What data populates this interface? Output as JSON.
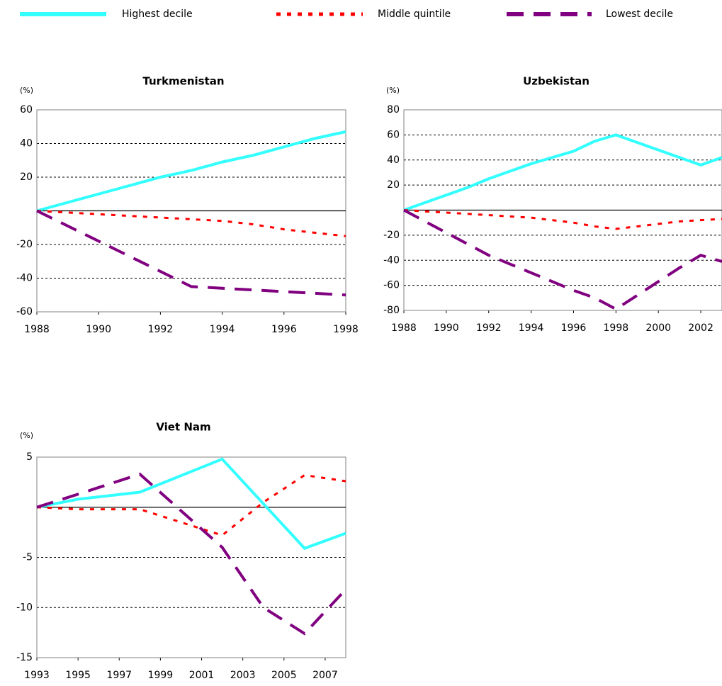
{
  "chart_data": [
    {
      "type": "line",
      "title": "Turkmenistan",
      "y_label": "(%)",
      "x": [
        1988,
        1989,
        1990,
        1991,
        1992,
        1993,
        1994,
        1995,
        1996,
        1997,
        1998
      ],
      "xlim": [
        1988,
        1998
      ],
      "xticks": [
        1988,
        1990,
        1992,
        1994,
        1996,
        1998
      ],
      "ylim": [
        -60,
        60
      ],
      "yticks": [
        -60,
        -40,
        -20,
        20,
        40,
        60
      ],
      "grid": true,
      "zero_line": true,
      "series": [
        {
          "name": "Highest decile",
          "color": "#33ffff",
          "dash": "solid",
          "values": [
            0,
            5,
            10,
            15,
            20,
            24,
            29,
            33,
            38,
            43,
            47
          ]
        },
        {
          "name": "Middle quintile",
          "color": "#ff0000",
          "dash": "dotted",
          "values": [
            0,
            -1,
            -2,
            -3,
            -4,
            -5,
            -6,
            -8,
            -11,
            -13,
            -15
          ]
        },
        {
          "name": "Lowest decile",
          "color": "#800080",
          "dash": "dashed",
          "values": [
            0,
            -9,
            -18,
            -27,
            -36,
            -45,
            -46,
            -47,
            -48,
            -49,
            -50
          ]
        }
      ]
    },
    {
      "type": "line",
      "title": "Uzbekistan",
      "y_label": "(%)",
      "x": [
        1988,
        1989,
        1990,
        1991,
        1992,
        1993,
        1994,
        1995,
        1996,
        1997,
        1998,
        1999,
        2000,
        2001,
        2002,
        2003
      ],
      "xlim": [
        1988,
        2003
      ],
      "xticks": [
        1988,
        1990,
        1992,
        1994,
        1996,
        1998,
        2000,
        2002
      ],
      "ylim": [
        -80,
        80
      ],
      "yticks": [
        -80,
        -60,
        -40,
        -20,
        20,
        40,
        60,
        80
      ],
      "grid": true,
      "zero_line": true,
      "series": [
        {
          "color": "#33ffff",
          "dash": "solid",
          "values": [
            0,
            6,
            12,
            18,
            25,
            31,
            37,
            42,
            47,
            55,
            60,
            54,
            48,
            42,
            36,
            42
          ]
        },
        {
          "color": "#ff0000",
          "dash": "dotted",
          "values": [
            0,
            -1,
            -2,
            -3,
            -4,
            -5,
            -6,
            -8,
            -10,
            -13,
            -15,
            -13,
            -11,
            -9,
            -8,
            -7
          ]
        },
        {
          "color": "#800080",
          "dash": "dashed",
          "values": [
            0,
            -9,
            -18,
            -27,
            -36,
            -43,
            -50,
            -57,
            -64,
            -70,
            -79,
            -68,
            -57,
            -46,
            -36,
            -41
          ]
        }
      ]
    },
    {
      "type": "line",
      "title": "Viet Nam",
      "y_label": "(%)",
      "x": [
        1993,
        1995,
        1998,
        2002,
        2004,
        2006,
        2008
      ],
      "xlim": [
        1993,
        2008
      ],
      "xticks": [
        1993,
        1995,
        1997,
        1999,
        2001,
        2003,
        2005,
        2007
      ],
      "ylim": [
        -15,
        5
      ],
      "yticks": [
        -15,
        -10,
        -5,
        5
      ],
      "grid": true,
      "zero_line": true,
      "series": [
        {
          "color": "#33ffff",
          "dash": "solid",
          "values": [
            0,
            0.8,
            1.5,
            4.8,
            0.35,
            -4.1,
            -2.6
          ]
        },
        {
          "color": "#ff0000",
          "dash": "dotted",
          "values": [
            0,
            -0.2,
            -0.2,
            -2.8,
            0.5,
            3.2,
            2.6
          ]
        },
        {
          "color": "#800080",
          "dash": "dashed",
          "values": [
            0,
            1.3,
            3.3,
            -4,
            -10,
            -12.6,
            -8.2
          ]
        }
      ]
    }
  ]
}
